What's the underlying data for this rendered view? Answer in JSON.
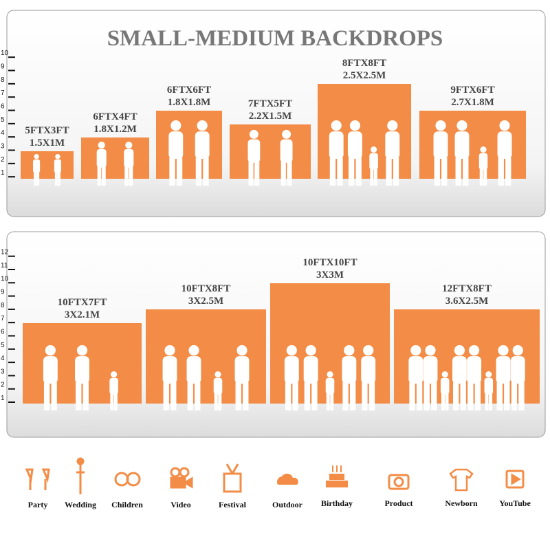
{
  "title": "SMALL-MEDIUM BACKDROPS",
  "panels": [
    {
      "scale": [
        1,
        2,
        3,
        4,
        5,
        6,
        7,
        8,
        9,
        10
      ],
      "backdrops": [
        {
          "size_ft": "5FTX3FT",
          "size_m": "1.5X1M"
        },
        {
          "size_ft": "6FTX4FT",
          "size_m": "1.8X1.2M"
        },
        {
          "size_ft": "6FTX6FT",
          "size_m": "1.8X1.8M"
        },
        {
          "size_ft": "7FTX5FT",
          "size_m": "2.2X1.5M"
        },
        {
          "size_ft": "8FTX8FT",
          "size_m": "2.5X2.5M"
        },
        {
          "size_ft": "9FTX6FT",
          "size_m": "2.7X1.8M"
        }
      ]
    },
    {
      "scale": [
        1,
        2,
        3,
        4,
        5,
        6,
        7,
        8,
        9,
        10,
        11,
        12
      ],
      "backdrops": [
        {
          "size_ft": "10FTX7FT",
          "size_m": "3X2.1M"
        },
        {
          "size_ft": "10FTX8FT",
          "size_m": "3X2.5M"
        },
        {
          "size_ft": "10FTX10FT",
          "size_m": "3X3M"
        },
        {
          "size_ft": "12FTX8FT",
          "size_m": "3.6X2.5M"
        }
      ]
    }
  ],
  "categories": [
    "Party",
    "Wedding",
    "Children",
    "Video",
    "Festival",
    "Outdoor",
    "Birthday",
    "Product",
    "Newborn",
    "YouTube"
  ]
}
